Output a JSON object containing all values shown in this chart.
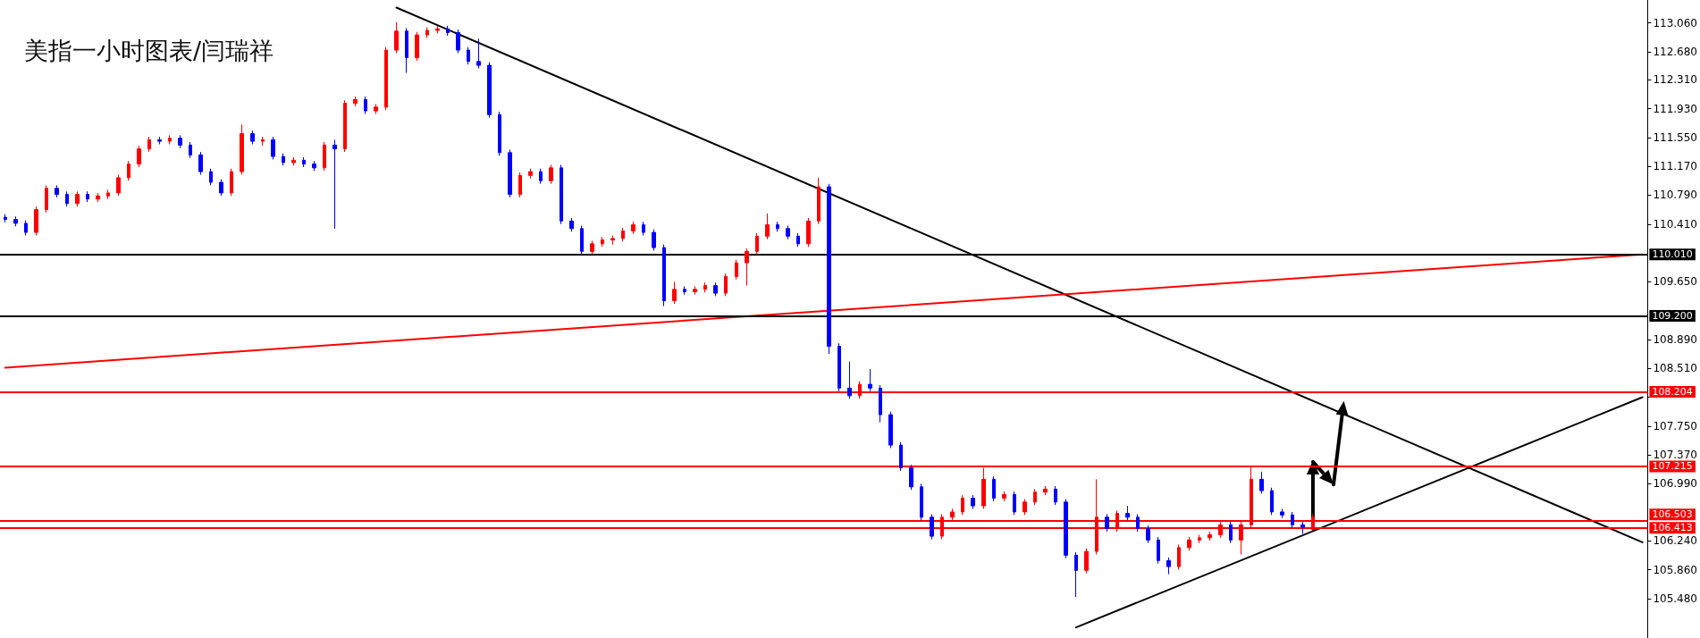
{
  "chart_data": {
    "type": "candlestick",
    "title": "美指一小时图表/闫瑞祥",
    "categories": [
      null,
      null,
      null,
      null,
      null,
      null,
      null,
      null,
      null,
      null,
      null,
      null,
      null,
      null,
      null,
      null,
      null,
      null,
      null,
      null,
      null,
      null,
      null,
      null,
      null,
      null,
      null,
      null,
      null,
      null,
      null,
      null,
      null,
      null,
      null,
      null,
      null,
      null,
      null,
      null,
      null,
      null,
      null,
      null,
      null,
      null,
      null,
      null,
      null,
      null,
      null,
      null,
      null,
      null,
      null,
      null,
      null,
      null,
      null,
      null,
      null,
      null,
      null,
      null,
      null,
      null,
      null,
      null,
      null,
      null,
      null,
      null,
      null,
      null,
      null,
      null,
      null,
      null,
      null,
      null,
      null,
      null,
      null,
      null,
      null,
      null,
      null,
      null,
      null,
      null,
      null,
      null,
      null,
      null,
      null,
      null,
      null,
      null,
      null,
      null,
      null,
      null,
      null,
      null,
      null,
      null,
      null,
      null,
      null,
      null,
      null,
      null,
      null,
      null,
      null,
      null,
      null,
      null,
      null,
      null,
      null,
      null,
      null,
      null,
      null,
      null,
      null,
      null,
      null,
      null,
      null,
      null,
      null,
      null,
      null,
      null,
      null,
      null,
      null,
      null,
      null,
      null,
      null,
      null,
      null,
      null,
      null,
      null,
      null,
      null,
      null,
      null,
      null,
      null,
      null,
      null,
      null,
      null,
      null,
      null
    ],
    "ylim": [
      104.96,
      113.36
    ],
    "yticks": [
      {
        "value": 105.48,
        "label": "105.480"
      },
      {
        "value": 105.86,
        "label": "105.860"
      },
      {
        "value": 106.24,
        "label": "106.240"
      },
      {
        "value": 106.99,
        "label": "106.990"
      },
      {
        "value": 107.37,
        "label": "107.370"
      },
      {
        "value": 107.75,
        "label": "107.750"
      },
      {
        "value": 108.13,
        "label": null
      },
      {
        "value": 108.51,
        "label": "108.510"
      },
      {
        "value": 108.89,
        "label": "108.890"
      },
      {
        "value": 109.65,
        "label": "109.650"
      },
      {
        "value": 110.41,
        "label": "110.410"
      },
      {
        "value": 110.79,
        "label": "110.790"
      },
      {
        "value": 111.17,
        "label": "111.170"
      },
      {
        "value": 111.55,
        "label": "111.550"
      },
      {
        "value": 111.93,
        "label": "111.930"
      },
      {
        "value": 112.31,
        "label": "112.310"
      },
      {
        "value": 112.68,
        "label": "112.680"
      },
      {
        "value": 113.06,
        "label": "113.060"
      }
    ],
    "tick_labels": "y",
    "ref_lines": [
      {
        "axis": "y",
        "value": 110.01,
        "label": "110.010",
        "color": "#000000"
      },
      {
        "axis": "y",
        "value": 109.2,
        "label": "109.200",
        "color": "#000000"
      },
      {
        "axis": "y",
        "value": 108.204,
        "label": "108.204",
        "color": "#ff0000"
      },
      {
        "axis": "y",
        "value": 107.215,
        "label": "107.215",
        "color": "#ff0000"
      },
      {
        "axis": "y",
        "value": 106.503,
        "label": "106.503",
        "color": "#ff0000"
      },
      {
        "axis": "y",
        "value": 106.413,
        "label": "106.413",
        "color": "#ff0000"
      }
    ],
    "series": [
      {
        "ohlc": [
          [
            110.5,
            110.54,
            110.43,
            110.47
          ],
          [
            110.47,
            110.51,
            110.38,
            110.42
          ],
          [
            110.42,
            110.46,
            110.26,
            110.3
          ],
          [
            110.3,
            110.64,
            110.26,
            110.6
          ],
          [
            110.6,
            110.92,
            110.56,
            110.88
          ],
          [
            110.88,
            110.92,
            110.76,
            110.8
          ],
          [
            110.8,
            110.84,
            110.64,
            110.68
          ],
          [
            110.68,
            110.84,
            110.64,
            110.8
          ],
          [
            110.8,
            110.84,
            110.7,
            110.74
          ],
          [
            110.74,
            110.82,
            110.7,
            110.78
          ],
          [
            110.78,
            110.86,
            110.74,
            110.82
          ],
          [
            110.82,
            111.06,
            110.78,
            111.02
          ],
          [
            111.02,
            111.24,
            110.98,
            111.2
          ],
          [
            111.2,
            111.44,
            111.16,
            111.4
          ],
          [
            111.4,
            111.56,
            111.36,
            111.52
          ],
          [
            111.52,
            111.56,
            111.46,
            111.5
          ],
          [
            111.5,
            111.58,
            111.46,
            111.54
          ],
          [
            111.54,
            111.58,
            111.41,
            111.45
          ],
          [
            111.45,
            111.49,
            111.28,
            111.32
          ],
          [
            111.32,
            111.36,
            111.06,
            111.1
          ],
          [
            111.1,
            111.14,
            110.92,
            110.96
          ],
          [
            110.96,
            111.0,
            110.78,
            110.82
          ],
          [
            110.82,
            111.14,
            110.78,
            111.1
          ],
          [
            111.1,
            111.72,
            111.06,
            111.6
          ],
          [
            111.6,
            111.64,
            111.46,
            111.5
          ],
          [
            111.5,
            111.56,
            111.44,
            111.52
          ],
          [
            111.52,
            111.56,
            111.26,
            111.3
          ],
          [
            111.3,
            111.34,
            111.18,
            111.22
          ],
          [
            111.22,
            111.29,
            111.18,
            111.25
          ],
          [
            111.25,
            111.29,
            111.16,
            111.2
          ],
          [
            111.2,
            111.24,
            111.11,
            111.15
          ],
          [
            111.15,
            111.49,
            111.11,
            111.45
          ],
          [
            111.45,
            111.52,
            110.35,
            111.4
          ],
          [
            111.4,
            112.04,
            111.36,
            112.0
          ],
          [
            112.0,
            112.09,
            111.96,
            112.05
          ],
          [
            112.05,
            112.09,
            111.86,
            111.9
          ],
          [
            111.9,
            111.99,
            111.86,
            111.95
          ],
          [
            111.95,
            112.74,
            111.91,
            112.7
          ],
          [
            112.7,
            113.07,
            112.66,
            112.95
          ],
          [
            112.95,
            112.99,
            112.4,
            112.6
          ],
          [
            112.6,
            112.94,
            112.56,
            112.9
          ],
          [
            112.9,
            113.0,
            112.86,
            112.96
          ],
          [
            112.96,
            113.02,
            112.92,
            112.98
          ],
          [
            112.98,
            113.02,
            112.89,
            112.93
          ],
          [
            112.93,
            112.97,
            112.66,
            112.7
          ],
          [
            112.7,
            112.74,
            112.51,
            112.55
          ],
          [
            112.55,
            112.85,
            112.46,
            112.5
          ],
          [
            112.5,
            112.54,
            111.81,
            111.85
          ],
          [
            111.85,
            111.89,
            111.31,
            111.35
          ],
          [
            111.35,
            111.39,
            110.76,
            110.8
          ],
          [
            110.8,
            111.09,
            110.76,
            111.05
          ],
          [
            111.05,
            111.14,
            111.01,
            111.1
          ],
          [
            111.1,
            111.14,
            110.94,
            110.98
          ],
          [
            110.98,
            111.19,
            110.94,
            111.15
          ],
          [
            111.15,
            111.19,
            110.41,
            110.45
          ],
          [
            110.45,
            110.49,
            110.31,
            110.35
          ],
          [
            110.35,
            110.39,
            110.01,
            110.05
          ],
          [
            110.05,
            110.19,
            110.01,
            110.15
          ],
          [
            110.15,
            110.24,
            110.11,
            110.2
          ],
          [
            110.2,
            110.26,
            110.14,
            110.22
          ],
          [
            110.22,
            110.36,
            110.18,
            110.32
          ],
          [
            110.32,
            110.44,
            110.28,
            110.4
          ],
          [
            110.4,
            110.44,
            110.26,
            110.3
          ],
          [
            110.3,
            110.34,
            110.06,
            110.1
          ],
          [
            110.1,
            110.14,
            109.33,
            109.4
          ],
          [
            109.4,
            109.65,
            109.36,
            109.55
          ],
          [
            109.55,
            109.59,
            109.48,
            109.52
          ],
          [
            109.52,
            109.59,
            109.48,
            109.55
          ],
          [
            109.55,
            109.64,
            109.51,
            109.6
          ],
          [
            109.6,
            109.64,
            109.46,
            109.5
          ],
          [
            109.5,
            109.76,
            109.46,
            109.72
          ],
          [
            109.72,
            109.94,
            109.68,
            109.9
          ],
          [
            109.9,
            110.09,
            109.6,
            110.05
          ],
          [
            110.05,
            110.29,
            110.01,
            110.25
          ],
          [
            110.25,
            110.55,
            110.21,
            110.4
          ],
          [
            110.4,
            110.44,
            110.31,
            110.35
          ],
          [
            110.35,
            110.39,
            110.21,
            110.25
          ],
          [
            110.25,
            110.29,
            110.11,
            110.15
          ],
          [
            110.15,
            110.49,
            110.11,
            110.45
          ],
          [
            110.45,
            111.02,
            110.41,
            110.9
          ],
          [
            110.9,
            110.94,
            108.7,
            108.8
          ],
          [
            108.8,
            108.84,
            108.21,
            108.25
          ],
          [
            108.25,
            108.6,
            108.11,
            108.15
          ],
          [
            108.15,
            108.34,
            108.11,
            108.3
          ],
          [
            108.3,
            108.5,
            108.21,
            108.25
          ],
          [
            108.25,
            108.29,
            107.8,
            107.9
          ],
          [
            107.9,
            107.94,
            107.46,
            107.5
          ],
          [
            107.5,
            107.54,
            107.16,
            107.2
          ],
          [
            107.2,
            107.24,
            106.91,
            106.95
          ],
          [
            106.95,
            106.99,
            106.51,
            106.55
          ],
          [
            106.55,
            106.59,
            106.26,
            106.3
          ],
          [
            106.3,
            106.59,
            106.26,
            106.55
          ],
          [
            106.55,
            106.66,
            106.51,
            106.62
          ],
          [
            106.62,
            106.84,
            106.58,
            106.8
          ],
          [
            106.8,
            106.84,
            106.66,
            106.7
          ],
          [
            106.7,
            107.2,
            106.66,
            107.05
          ],
          [
            107.05,
            107.09,
            106.76,
            106.8
          ],
          [
            106.8,
            106.89,
            106.76,
            106.85
          ],
          [
            106.85,
            106.89,
            106.58,
            106.62
          ],
          [
            106.62,
            106.79,
            106.58,
            106.75
          ],
          [
            106.75,
            106.92,
            106.71,
            106.88
          ],
          [
            106.88,
            106.96,
            106.84,
            106.92
          ],
          [
            106.92,
            106.96,
            106.71,
            106.75
          ],
          [
            106.75,
            106.79,
            106.01,
            106.05
          ],
          [
            106.05,
            106.09,
            105.5,
            105.85
          ],
          [
            105.85,
            106.14,
            105.81,
            106.1
          ],
          [
            106.1,
            107.05,
            106.06,
            106.55
          ],
          [
            106.55,
            106.59,
            106.36,
            106.4
          ],
          [
            106.4,
            106.64,
            106.36,
            106.6
          ],
          [
            106.6,
            106.7,
            106.51,
            106.55
          ],
          [
            106.55,
            106.59,
            106.36,
            106.4
          ],
          [
            106.4,
            106.44,
            106.21,
            106.25
          ],
          [
            106.25,
            106.29,
            105.94,
            105.98
          ],
          [
            105.98,
            106.02,
            105.8,
            105.9
          ],
          [
            105.9,
            106.19,
            105.86,
            106.15
          ],
          [
            106.15,
            106.29,
            106.11,
            106.25
          ],
          [
            106.25,
            106.32,
            106.21,
            106.28
          ],
          [
            106.28,
            106.36,
            106.24,
            106.32
          ],
          [
            106.32,
            106.49,
            106.28,
            106.45
          ],
          [
            106.45,
            106.49,
            106.21,
            106.25
          ],
          [
            106.25,
            106.49,
            106.06,
            106.45
          ],
          [
            106.45,
            107.22,
            106.41,
            107.05
          ],
          [
            107.05,
            107.15,
            106.86,
            106.9
          ],
          [
            106.9,
            106.94,
            106.58,
            106.62
          ],
          [
            106.62,
            106.66,
            106.54,
            106.58
          ],
          [
            106.58,
            106.62,
            106.41,
            106.45
          ],
          [
            106.45,
            106.49,
            106.33,
            106.42
          ],
          [
            106.42,
            106.59,
            106.38,
            106.55
          ],
          null,
          null,
          null,
          null,
          null,
          null,
          null,
          null,
          null,
          null,
          null,
          null,
          null,
          null,
          null,
          null,
          null,
          null,
          null,
          null,
          null,
          null,
          null,
          null,
          null,
          null,
          null,
          null,
          null,
          null,
          null,
          null
        ],
        "colors": [
          "#0000ff",
          "#0000ff",
          "#0000ff",
          "#ff0000",
          "#ff0000",
          "#0000ff",
          "#0000ff",
          "#ff0000",
          "#0000ff",
          "#ff0000",
          "#ff0000",
          "#ff0000",
          "#ff0000",
          "#ff0000",
          "#ff0000",
          "#0000ff",
          "#ff0000",
          "#0000ff",
          "#0000ff",
          "#0000ff",
          "#0000ff",
          "#0000ff",
          "#ff0000",
          "#ff0000",
          "#0000ff",
          "#ff0000",
          "#0000ff",
          "#0000ff",
          "#ff0000",
          "#0000ff",
          "#0000ff",
          "#ff0000",
          "#0000ff",
          "#ff0000",
          "#ff0000",
          "#0000ff",
          "#ff0000",
          "#ff0000",
          "#ff0000",
          "#0000ff",
          "#ff0000",
          "#ff0000",
          "#ff0000",
          "#0000ff",
          "#0000ff",
          "#0000ff",
          "#0000ff",
          "#0000ff",
          "#0000ff",
          "#0000ff",
          "#ff0000",
          "#ff0000",
          "#0000ff",
          "#ff0000",
          "#0000ff",
          "#0000ff",
          "#0000ff",
          "#ff0000",
          "#ff0000",
          "#ff0000",
          "#ff0000",
          "#ff0000",
          "#0000ff",
          "#0000ff",
          "#0000ff",
          "#ff0000",
          "#0000ff",
          "#ff0000",
          "#ff0000",
          "#0000ff",
          "#ff0000",
          "#ff0000",
          "#ff0000",
          "#ff0000",
          "#ff0000",
          "#0000ff",
          "#0000ff",
          "#0000ff",
          "#ff0000",
          "#ff0000",
          "#0000ff",
          "#0000ff",
          "#0000ff",
          "#ff0000",
          "#0000ff",
          "#0000ff",
          "#0000ff",
          "#0000ff",
          "#0000ff",
          "#0000ff",
          "#0000ff",
          "#ff0000",
          "#ff0000",
          "#ff0000",
          "#0000ff",
          "#ff0000",
          "#0000ff",
          "#ff0000",
          "#0000ff",
          "#ff0000",
          "#ff0000",
          "#ff0000",
          "#0000ff",
          "#0000ff",
          "#0000ff",
          "#ff0000",
          "#ff0000",
          "#0000ff",
          "#ff0000",
          "#0000ff",
          "#0000ff",
          "#0000ff",
          "#0000ff",
          "#0000ff",
          "#ff0000",
          "#ff0000",
          "#ff0000",
          "#ff0000",
          "#ff0000",
          "#0000ff",
          "#ff0000",
          "#ff0000",
          "#0000ff",
          "#0000ff",
          "#0000ff",
          "#0000ff",
          "#0000ff",
          "#ff0000",
          null,
          null,
          null,
          null,
          null,
          null,
          null,
          null,
          null,
          null,
          null,
          null,
          null,
          null,
          null,
          null,
          null,
          null,
          null,
          null,
          null,
          null,
          null,
          null,
          null,
          null,
          null,
          null,
          null,
          null,
          null,
          null
        ]
      },
      {
        "type": "line",
        "color": "#000000",
        "values": [
          null,
          null,
          null,
          null,
          null,
          null,
          null,
          null,
          null,
          null,
          null,
          null,
          null,
          null,
          null,
          null,
          null,
          null,
          null,
          null,
          null,
          null,
          null,
          null,
          null,
          null,
          null,
          null,
          null,
          null,
          null,
          null,
          null,
          null,
          null,
          null,
          null,
          null,
          113.26,
          null,
          null,
          null,
          null,
          null,
          null,
          null,
          null,
          null,
          null,
          null,
          null,
          null,
          null,
          null,
          null,
          null,
          null,
          null,
          null,
          null,
          null,
          null,
          null,
          null,
          null,
          null,
          null,
          null,
          null,
          null,
          null,
          null,
          null,
          null,
          null,
          null,
          null,
          null,
          null,
          null,
          null,
          null,
          null,
          null,
          null,
          null,
          null,
          null,
          null,
          null,
          null,
          null,
          null,
          null,
          null,
          null,
          null,
          null,
          null,
          null,
          null,
          null,
          null,
          null,
          null,
          null,
          null,
          null,
          null,
          null,
          null,
          null,
          null,
          null,
          null,
          null,
          null,
          null,
          null,
          null,
          null,
          null,
          null,
          null,
          null,
          null,
          null,
          null,
          null,
          null,
          null,
          null,
          null,
          null,
          null,
          null,
          null,
          null,
          null,
          null,
          null,
          null,
          null,
          null,
          null,
          null,
          null,
          null,
          null,
          null,
          null,
          null,
          null,
          null,
          null,
          null,
          null,
          null,
          null,
          106.22
        ]
      },
      {
        "type": "line",
        "color": "#000000",
        "values": [
          null,
          null,
          null,
          null,
          null,
          null,
          null,
          null,
          null,
          null,
          null,
          null,
          null,
          null,
          null,
          null,
          null,
          null,
          null,
          null,
          null,
          null,
          null,
          null,
          null,
          null,
          null,
          null,
          null,
          null,
          null,
          null,
          null,
          null,
          null,
          null,
          null,
          null,
          null,
          null,
          null,
          null,
          null,
          null,
          null,
          null,
          null,
          null,
          null,
          null,
          null,
          null,
          null,
          null,
          null,
          null,
          null,
          null,
          null,
          null,
          null,
          null,
          null,
          null,
          null,
          null,
          null,
          null,
          null,
          null,
          null,
          null,
          null,
          null,
          null,
          null,
          null,
          null,
          null,
          null,
          null,
          null,
          null,
          null,
          null,
          null,
          null,
          null,
          null,
          null,
          null,
          null,
          null,
          null,
          null,
          null,
          null,
          null,
          null,
          null,
          null,
          null,
          null,
          null,
          105.1,
          null,
          null,
          null,
          null,
          null,
          null,
          null,
          null,
          null,
          null,
          null,
          null,
          null,
          null,
          null,
          null,
          null,
          null,
          null,
          null,
          null,
          null,
          null,
          null,
          null,
          null,
          null,
          null,
          null,
          null,
          null,
          null,
          null,
          null,
          null,
          null,
          null,
          null,
          null,
          null,
          null,
          null,
          null,
          null,
          null,
          null,
          null,
          null,
          null,
          null,
          null,
          null,
          null,
          null,
          108.13
        ]
      },
      {
        "type": "line",
        "color": "#ff0000",
        "values": [
          108.52,
          null,
          null,
          null,
          null,
          null,
          null,
          null,
          null,
          null,
          null,
          null,
          null,
          null,
          null,
          null,
          null,
          null,
          null,
          null,
          null,
          null,
          null,
          null,
          null,
          null,
          null,
          null,
          null,
          null,
          null,
          null,
          null,
          null,
          null,
          null,
          null,
          null,
          null,
          null,
          null,
          null,
          null,
          null,
          null,
          null,
          null,
          null,
          null,
          null,
          null,
          null,
          null,
          null,
          null,
          null,
          null,
          null,
          null,
          null,
          null,
          null,
          null,
          null,
          null,
          null,
          null,
          null,
          null,
          null,
          null,
          null,
          null,
          null,
          null,
          null,
          null,
          null,
          null,
          null,
          null,
          null,
          null,
          null,
          null,
          null,
          null,
          null,
          null,
          null,
          null,
          null,
          null,
          null,
          null,
          null,
          null,
          null,
          null,
          null,
          null,
          null,
          null,
          null,
          null,
          null,
          null,
          null,
          null,
          null,
          null,
          null,
          null,
          null,
          null,
          null,
          null,
          null,
          null,
          null,
          null,
          null,
          null,
          null,
          null,
          null,
          null,
          null,
          null,
          null,
          null,
          null,
          null,
          null,
          null,
          null,
          null,
          null,
          null,
          null,
          null,
          null,
          null,
          null,
          null,
          null,
          null,
          null,
          null,
          null,
          null,
          null,
          null,
          null,
          null,
          null,
          null,
          null,
          null,
          110.01
        ]
      }
    ]
  }
}
